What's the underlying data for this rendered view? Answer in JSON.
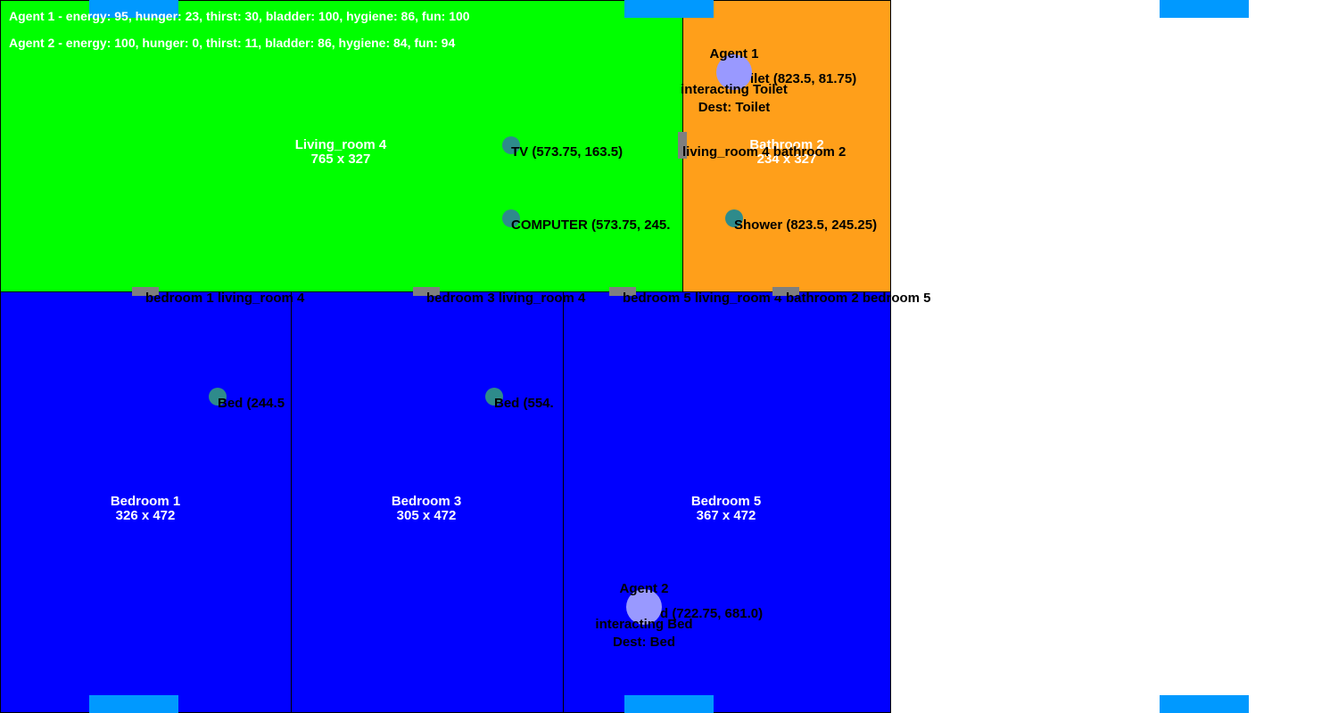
{
  "colors": {
    "living_room": "#00ff00",
    "bathroom": "#ff9f1a",
    "bedroom": "#0000ff",
    "bar": "#0099ff",
    "door": "#7f7f7f",
    "object": "#2e8b8b",
    "agent": "#9999ff"
  },
  "status": {
    "agent1": "Agent 1 - energy: 95, hunger: 23, thirst: 30, bladder: 100, hygiene: 86, fun: 100",
    "agent2": "Agent 2 - energy: 100, hunger: 0, thirst: 11, bladder: 86, hygiene: 84, fun: 94"
  },
  "rooms": {
    "living_room": {
      "name": "Living_room 4",
      "size": "765 x 327"
    },
    "bathroom": {
      "name": "Bathroom 2",
      "size": "234 x 327"
    },
    "bedroom1": {
      "name": "Bedroom 1",
      "size": "326 x 472"
    },
    "bedroom3": {
      "name": "Bedroom 3",
      "size": "305 x 472"
    },
    "bedroom5": {
      "name": "Bedroom 5",
      "size": "367 x 472"
    }
  },
  "doors": {
    "lr_bath": "living_room 4 bathroom 2",
    "bed1_lr": "bedroom 1 living_room 4",
    "bed3_lr": "bedroom 3 living_room 4",
    "bed5_lr": "bedroom 5 living_room 4",
    "bath_bed5": "bathroom 2 bedroom 5"
  },
  "objects": {
    "tv": "TV (573.75, 163.5)",
    "computer": "COMPUTER (573.75, 245.",
    "shower": "Shower (823.5, 245.25)",
    "toilet": "ilet (823.5, 81.75)",
    "bed1": "Bed (244.5",
    "bed3": "Bed (554.",
    "bed5": "d (722.75, 681.0)"
  },
  "agents": {
    "agent1": {
      "name": "Agent 1",
      "action": "interacting Toilet",
      "dest": "Dest: Toilet"
    },
    "agent2": {
      "name": "Agent 2",
      "action": "interacting Bed",
      "dest": "Dest: Bed"
    }
  }
}
